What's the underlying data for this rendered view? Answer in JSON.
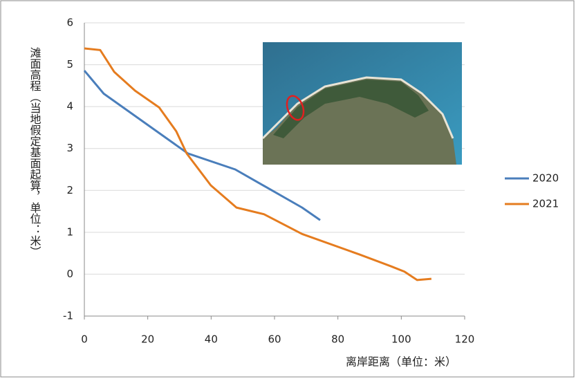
{
  "chart_data": {
    "type": "line",
    "y_label": "滩面高程（当地假定基面起算，单位：米）",
    "x_label": "离岸距离（单位：米）",
    "xlim": [
      0,
      120
    ],
    "xticks": [
      0,
      20,
      40,
      60,
      80,
      100,
      120
    ],
    "ylim": [
      -1,
      6
    ],
    "yticks": [
      -1,
      0,
      1,
      2,
      3,
      4,
      5,
      6
    ],
    "grid": true,
    "legend": "right",
    "series": [
      {
        "name": "2020",
        "color": "#4a7ebb",
        "x": [
          0,
          6.1,
          32.7,
          47.6,
          68.7,
          74.4
        ],
        "values": [
          4.86,
          4.31,
          2.88,
          2.5,
          1.59,
          1.29
        ]
      },
      {
        "name": "2021",
        "color": "#e57c1f",
        "x": [
          0,
          5,
          9.4,
          16,
          23.6,
          29,
          32.3,
          39.9,
          48,
          56.7,
          68.7,
          86.8,
          96.7,
          101,
          105,
          109.5
        ],
        "values": [
          5.39,
          5.35,
          4.83,
          4.38,
          3.98,
          3.41,
          2.88,
          2.12,
          1.59,
          1.43,
          0.96,
          0.47,
          0.19,
          0.06,
          -0.14,
          -0.11
        ]
      }
    ]
  }
}
